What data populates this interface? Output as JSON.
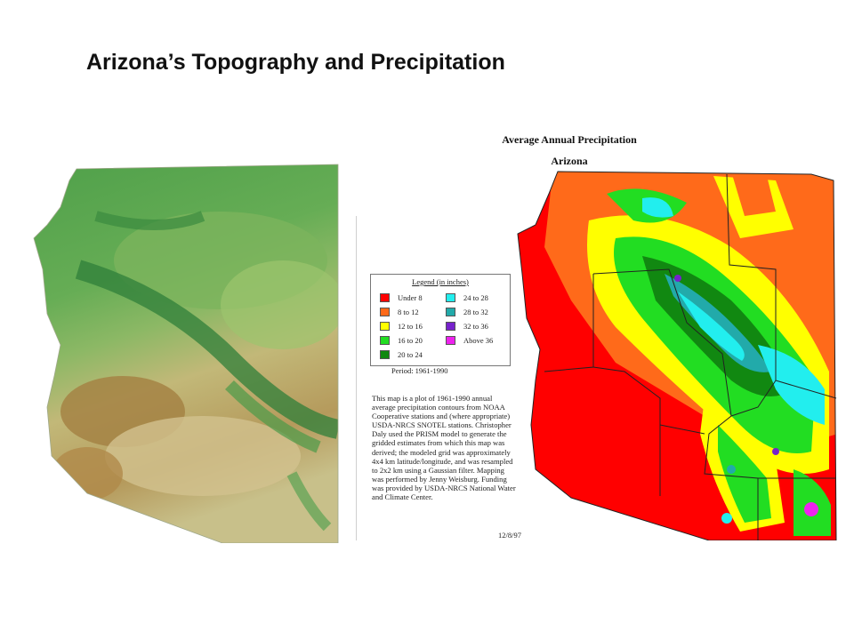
{
  "slide": {
    "title": "Arizona’s Topography and Precipitation"
  },
  "topography_map": {
    "name": "Arizona topographic relief map",
    "colors": {
      "lowland": "#b08a4a",
      "desert": "#cfc08a",
      "midland": "#a8c46a",
      "highland": "#4fa04a",
      "peaks": "#2f7f3a"
    }
  },
  "precipitation_map": {
    "title": "Average Annual Precipitation",
    "subtitle": "Arizona",
    "legend_title": "Legend (in inches)",
    "legend": [
      {
        "label": "Under 8",
        "color": "#ff0000"
      },
      {
        "label": "8 to 12",
        "color": "#ff6a1a"
      },
      {
        "label": "12 to 16",
        "color": "#ffff00"
      },
      {
        "label": "16 to 20",
        "color": "#22dd22"
      },
      {
        "label": "20 to 24",
        "color": "#118811"
      },
      {
        "label": "24 to 28",
        "color": "#22eeee"
      },
      {
        "label": "28 to 32",
        "color": "#22aaaa"
      },
      {
        "label": "32 to 36",
        "color": "#7722cc"
      },
      {
        "label": "Above 36",
        "color": "#ee22ee"
      }
    ],
    "period": "Period: 1961-1990",
    "description": "This map is a plot of 1961-1990 annual average precipitation contours from NOAA Cooperative stations and (where appropriate) USDA-NRCS SNOTEL stations. Christopher Daly used the PRISM model to generate the gridded estimates from which this map was derived; the modeled grid was approximately 4x4 km latitude/longitude, and was resampled to 2x2 km using a Gaussian filter. Mapping was performed by Jenny Weisburg. Funding was provided by USDA-NRCS National Water and Climate Center.",
    "date": "12/8/97"
  }
}
